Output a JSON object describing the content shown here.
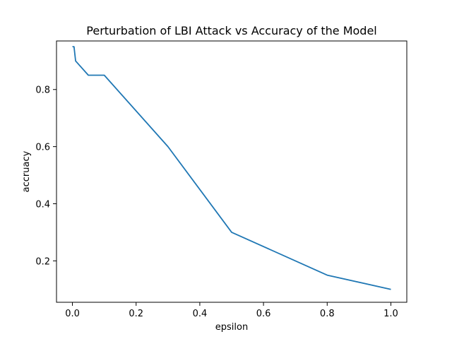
{
  "chart_data": {
    "type": "line",
    "title": "Perturbation of LBI Attack vs Accuracy of the Model",
    "xlabel": "epsilon",
    "ylabel": "accruacy",
    "xlim": [
      -0.05,
      1.05
    ],
    "ylim": [
      0.055,
      0.97
    ],
    "xticks": [
      {
        "value": 0.0,
        "label": "0.0"
      },
      {
        "value": 0.2,
        "label": "0.2"
      },
      {
        "value": 0.4,
        "label": "0.4"
      },
      {
        "value": 0.6,
        "label": "0.6"
      },
      {
        "value": 0.8,
        "label": "0.8"
      },
      {
        "value": 1.0,
        "label": "1.0"
      }
    ],
    "yticks": [
      {
        "value": 0.2,
        "label": "0.2"
      },
      {
        "value": 0.4,
        "label": "0.4"
      },
      {
        "value": 0.6,
        "label": "0.6"
      },
      {
        "value": 0.8,
        "label": "0.8"
      }
    ],
    "grid": false,
    "series": [
      {
        "color": "#1f77b4",
        "x": [
          0.0,
          0.005,
          0.01,
          0.05,
          0.1,
          0.3,
          0.5,
          0.8,
          1.0
        ],
        "y": [
          0.95,
          0.95,
          0.9,
          0.85,
          0.85,
          0.6,
          0.3,
          0.15,
          0.1
        ]
      }
    ]
  }
}
